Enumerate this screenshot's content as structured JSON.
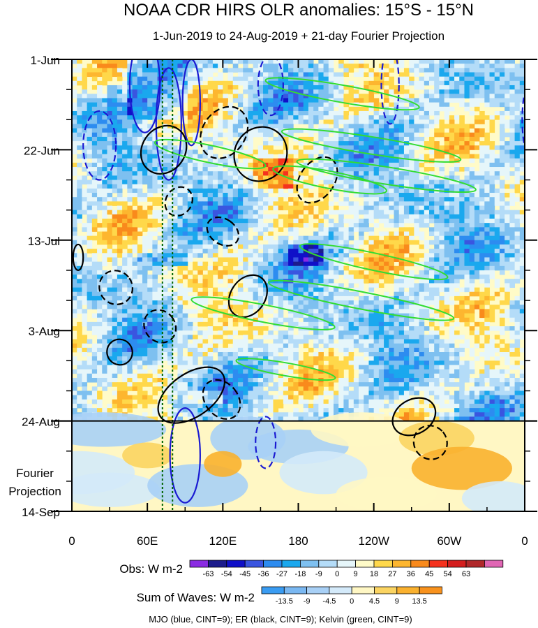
{
  "chart_data": {
    "type": "heatmap",
    "title": "NOAA CDR HIRS OLR anomalies: 15°S - 15°N",
    "subtitle": "1-Jun-2019 to 24-Aug-2019 + 21-day Fourier Projection",
    "x_ticks": [
      {
        "lon": 0,
        "label": "0"
      },
      {
        "lon": 60,
        "label": "60E"
      },
      {
        "lon": 120,
        "label": "120E"
      },
      {
        "lon": 180,
        "label": "180"
      },
      {
        "lon": 240,
        "label": "120W"
      },
      {
        "lon": 300,
        "label": "60W"
      },
      {
        "lon": 360,
        "label": "0"
      }
    ],
    "xlim": [
      0,
      360
    ],
    "y_ticks": [
      {
        "day": 0,
        "label": "1-Jun"
      },
      {
        "day": 21,
        "label": "22-Jun"
      },
      {
        "day": 42,
        "label": "13-Jul"
      },
      {
        "day": 63,
        "label": "3-Aug"
      },
      {
        "day": 84,
        "label": "24-Aug"
      },
      {
        "day": 105,
        "label": "14-Sep"
      }
    ],
    "ylim_days": [
      0,
      105
    ],
    "forecast_start_day": 84,
    "forecast_label_lines": [
      "Fourier",
      "Projection"
    ],
    "reference_lines_lon": [
      72,
      80
    ],
    "obs_colorbar": {
      "label": "Obs: W m-2",
      "colors": [
        "#8a2be2",
        "#1c1c8c",
        "#1010c8",
        "#3a55e0",
        "#2d8cf0",
        "#1aa8ee",
        "#7ec0f0",
        "#b4dcf8",
        "#e6f6fa",
        "#fffbc8",
        "#ffd84a",
        "#fdb62f",
        "#f98a1c",
        "#f5321e",
        "#d41e1e",
        "#b0282a",
        "#e066b4"
      ],
      "ticks": [
        "-63",
        "-54",
        "-45",
        "-36",
        "-27",
        "-18",
        "-9",
        "0",
        "9",
        "18",
        "27",
        "36",
        "45",
        "54",
        "63"
      ]
    },
    "waves_colorbar": {
      "label": "Sum of Waves: W m-2",
      "colors": [
        "#3a9cf2",
        "#7ab8f2",
        "#a8d0f6",
        "#d4eafa",
        "#fff7c4",
        "#fbd462",
        "#fab12f",
        "#f8921e"
      ],
      "ticks": [
        "-13.5",
        "-9",
        "-4.5",
        "0",
        "4.5",
        "9",
        "13.5"
      ]
    },
    "footer": "MJO (blue, CINT=9); ER (black, CINT=9); Kelvin (green, CINT=9)",
    "series": [
      {
        "name": "MJO",
        "color": "#1a1ad2",
        "contours": [
          {
            "cx": 58,
            "cy": 6,
            "rx": 12,
            "ry": 11,
            "rot": 0,
            "dash": false
          },
          {
            "cx": 77,
            "cy": 15,
            "rx": 10,
            "ry": 13,
            "rot": 0,
            "dash": false
          },
          {
            "cx": 95,
            "cy": 10,
            "rx": 7,
            "ry": 10,
            "rot": 0,
            "dash": false
          },
          {
            "cx": 22,
            "cy": 20,
            "rx": 13,
            "ry": 8,
            "rot": 0,
            "dash": true
          },
          {
            "cx": 158,
            "cy": 6,
            "rx": 10,
            "ry": 7,
            "rot": 0,
            "dash": true
          },
          {
            "cx": 253,
            "cy": 6,
            "rx": 7,
            "ry": 9,
            "rot": 0,
            "dash": true
          },
          {
            "cx": 362,
            "cy": 14,
            "rx": 4,
            "ry": 7,
            "rot": 0,
            "dash": true
          },
          {
            "cx": 90,
            "cy": 92,
            "rx": 12,
            "ry": 11,
            "rot": 0,
            "dash": false
          },
          {
            "cx": 154,
            "cy": 89,
            "rx": 8,
            "ry": 6,
            "rot": 0,
            "dash": true
          }
        ]
      },
      {
        "name": "ER",
        "color": "#000000",
        "contours": [
          {
            "cx": 73,
            "cy": 21,
            "rx": 20,
            "ry": 5,
            "rot": -55,
            "dash": false
          },
          {
            "cx": 121,
            "cy": 17,
            "rx": 22,
            "ry": 5,
            "rot": -55,
            "dash": true
          },
          {
            "cx": 150,
            "cy": 22,
            "rx": 22,
            "ry": 6,
            "rot": -55,
            "dash": false
          },
          {
            "cx": 85,
            "cy": 33,
            "rx": 12,
            "ry": 3,
            "rot": -55,
            "dash": true
          },
          {
            "cx": 195,
            "cy": 28,
            "rx": 20,
            "ry": 4,
            "rot": -55,
            "dash": true
          },
          {
            "cx": 120,
            "cy": 40,
            "rx": 10,
            "ry": 4,
            "rot": -55,
            "dash": true
          },
          {
            "cx": 140,
            "cy": 55,
            "rx": 18,
            "ry": 4,
            "rot": -55,
            "dash": false
          },
          {
            "cx": 35,
            "cy": 53,
            "rx": 13,
            "ry": 4,
            "rot": -35,
            "dash": true
          },
          {
            "cx": 70,
            "cy": 62,
            "rx": 12,
            "ry": 4,
            "rot": -40,
            "dash": true
          },
          {
            "cx": 38,
            "cy": 68,
            "rx": 10,
            "ry": 3,
            "rot": -40,
            "dash": false
          },
          {
            "cx": 95,
            "cy": 78,
            "rx": 30,
            "ry": 5,
            "rot": -35,
            "dash": false
          },
          {
            "cx": 119,
            "cy": 79,
            "rx": 13,
            "ry": 5,
            "rot": -40,
            "dash": true
          },
          {
            "cx": 272,
            "cy": 83,
            "rx": 18,
            "ry": 4,
            "rot": -30,
            "dash": false
          },
          {
            "cx": 285,
            "cy": 89,
            "rx": 13,
            "ry": 4,
            "rot": -40,
            "dash": true
          },
          {
            "cx": 5,
            "cy": 46,
            "rx": 4,
            "ry": 3,
            "rot": 0,
            "dash": false
          }
        ]
      },
      {
        "name": "Kelvin",
        "color": "#32dc32",
        "contours": [
          {
            "cx": 215,
            "cy": 8,
            "rx": 62,
            "ry": 2,
            "rot": 10,
            "dash": false
          },
          {
            "cx": 238,
            "cy": 20,
            "rx": 72,
            "ry": 2,
            "rot": 9,
            "dash": false
          },
          {
            "cx": 250,
            "cy": 27,
            "rx": 72,
            "ry": 2,
            "rot": 9,
            "dash": false
          },
          {
            "cx": 205,
            "cy": 28,
            "rx": 46,
            "ry": 2,
            "rot": 11,
            "dash": false
          },
          {
            "cx": 110,
            "cy": 22,
            "rx": 45,
            "ry": 2,
            "rot": 12,
            "dash": false
          },
          {
            "cx": 240,
            "cy": 47,
            "rx": 60,
            "ry": 2,
            "rot": 12,
            "dash": false
          },
          {
            "cx": 230,
            "cy": 56,
            "rx": 75,
            "ry": 2,
            "rot": 11,
            "dash": false
          },
          {
            "cx": 152,
            "cy": 59,
            "rx": 58,
            "ry": 2,
            "rot": 11,
            "dash": false
          },
          {
            "cx": 170,
            "cy": 72,
            "rx": 40,
            "ry": 1.5,
            "rot": 10,
            "dash": false
          }
        ]
      }
    ]
  }
}
